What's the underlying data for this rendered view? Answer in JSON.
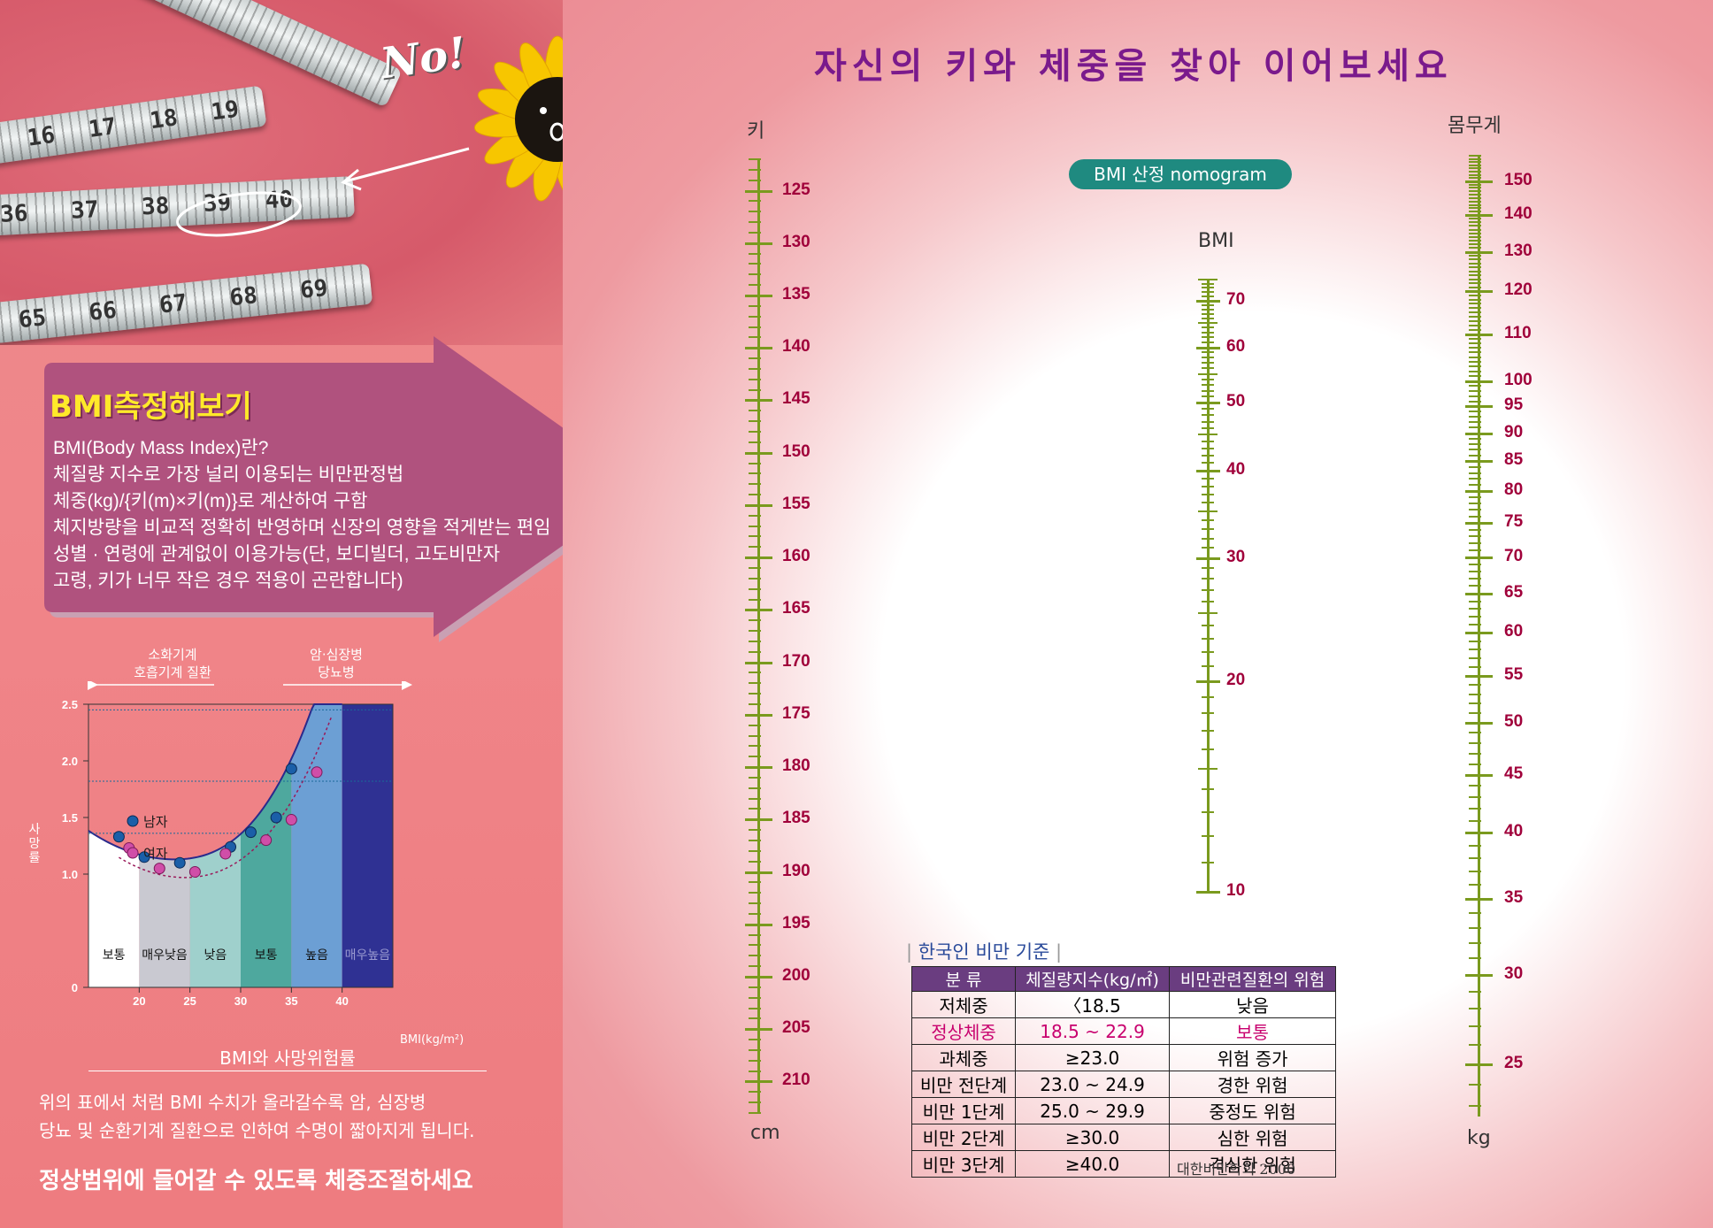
{
  "header": {
    "title": "자신의 키와 체중을 찾아 이어보세요"
  },
  "tape": {
    "numbers": [
      "16",
      "17",
      "18",
      "19",
      "36",
      "37",
      "38",
      "39",
      "40",
      "65",
      "66",
      "67",
      "68",
      "69"
    ]
  },
  "sunflower": {
    "no_text": "No!"
  },
  "arrow_box": {
    "title": "BMI측정해보기",
    "lines": [
      "BMI(Body Mass Index)란?",
      "체질량 지수로 가장 널리 이용되는 비만판정법",
      "체중(kg)/{키(m)×키(m)}로 계산하여 구함",
      "체지방량을 비교적 정확히 반영하며 신장의 영향을 적게받는 편임",
      "성별 · 연령에 관계없이 이용가능(단, 보디빌더, 고도비만자",
      "고령, 키가 너무 작은 경우 적용이 곤란합니다)"
    ]
  },
  "risk_chart": {
    "top_labels": [
      "소화기계\n호흡기계 질환",
      "암·심장병\n당뇨병"
    ],
    "top_label_1a": "소화기계",
    "top_label_1b": "호흡기계 질환",
    "top_label_2a": "암·심장병",
    "top_label_2b": "당뇨병",
    "ylabel": "사망률",
    "yticks": [
      "2.5",
      "2.0",
      "1.5",
      "1.0",
      "0"
    ],
    "xticks": [
      "20",
      "25",
      "30",
      "35",
      "40"
    ],
    "xlabel": "BMI(kg/m²)",
    "zones": [
      "보통",
      "매우낮음",
      "낮음",
      "보통",
      "높음",
      "매우높음"
    ],
    "legend_male": "남자",
    "legend_female": "여자",
    "caption": "BMI와 사망위험률",
    "colors": {
      "zone1": "#ffffff",
      "zone2": "#c9c9d1",
      "zone3": "#9fd0cc",
      "zone4": "#4ea89e",
      "zone5": "#6c9fd4",
      "zone6": "#2f3193",
      "curve": "#2a2a8c",
      "male": "#1b5fa8",
      "female": "#d04ea8"
    }
  },
  "chart_data": {
    "type": "scatter",
    "title": "BMI와 사망위험률",
    "xlabel": "BMI(kg/m²)",
    "ylabel": "사망률",
    "xlim": [
      15,
      45
    ],
    "ylim": [
      0,
      2.5
    ],
    "series": [
      {
        "name": "남자",
        "x": [
          18,
          20.5,
          24,
          29,
          31,
          33.5,
          35
        ],
        "y": [
          1.33,
          1.15,
          1.1,
          1.24,
          1.37,
          1.5,
          1.93
        ]
      },
      {
        "name": "여자",
        "x": [
          19,
          22,
          25.5,
          28.5,
          32.5,
          35,
          37.5
        ],
        "y": [
          1.23,
          1.05,
          1.02,
          1.18,
          1.3,
          1.48,
          1.9
        ]
      }
    ]
  },
  "bottom_text": {
    "line1": "위의 표에서 처럼 BMI 수치가 올라갈수록 암, 심장병",
    "line2": "당뇨 및 순환기계 질환으로 인하여 수명이 짧아지게 됩니다.",
    "slogan": "정상범위에 들어갈 수 있도록 체중조절하세요"
  },
  "nomogram": {
    "badge": "BMI 산정 nomogram",
    "height_label": "키",
    "height_unit": "cm",
    "height_ticks": [
      "125",
      "130",
      "135",
      "140",
      "145",
      "150",
      "155",
      "160",
      "165",
      "170",
      "175",
      "180",
      "185",
      "190",
      "195",
      "200",
      "205",
      "210"
    ],
    "bmi_label": "BMI",
    "bmi_ticks": [
      "70",
      "60",
      "50",
      "40",
      "30",
      "20",
      "10"
    ],
    "weight_label": "몸무게",
    "weight_unit": "kg",
    "weight_ticks": [
      "150",
      "140",
      "130",
      "120",
      "110",
      "100",
      "95",
      "90",
      "85",
      "80",
      "75",
      "70",
      "65",
      "60",
      "55",
      "50",
      "45",
      "40",
      "35",
      "30",
      "25"
    ],
    "scale_color": "#7a9a1e",
    "label_color": "#a0003a"
  },
  "criteria": {
    "title": "한국인 비만 기준",
    "headers": [
      "분  류",
      "체질량지수(kg/㎡)",
      "비만관련질환의 위험"
    ],
    "rows": [
      [
        "저체중",
        "〈18.5",
        "낮음"
      ],
      [
        "정상체중",
        "18.5 ~ 22.9",
        "보통"
      ],
      [
        "과체중",
        "≥23.0",
        "위험 증가"
      ],
      [
        "비만 전단계",
        "23.0 ~ 24.9",
        "경한 위험"
      ],
      [
        "비만 1단계",
        "25.0 ~ 29.9",
        "중정도 위험"
      ],
      [
        "비만 2단계",
        "≥30.0",
        "심한 위험"
      ],
      [
        "비만 3단계",
        "≥40.0",
        "격심한 위험"
      ]
    ],
    "source": "대한비만학회 2000"
  }
}
